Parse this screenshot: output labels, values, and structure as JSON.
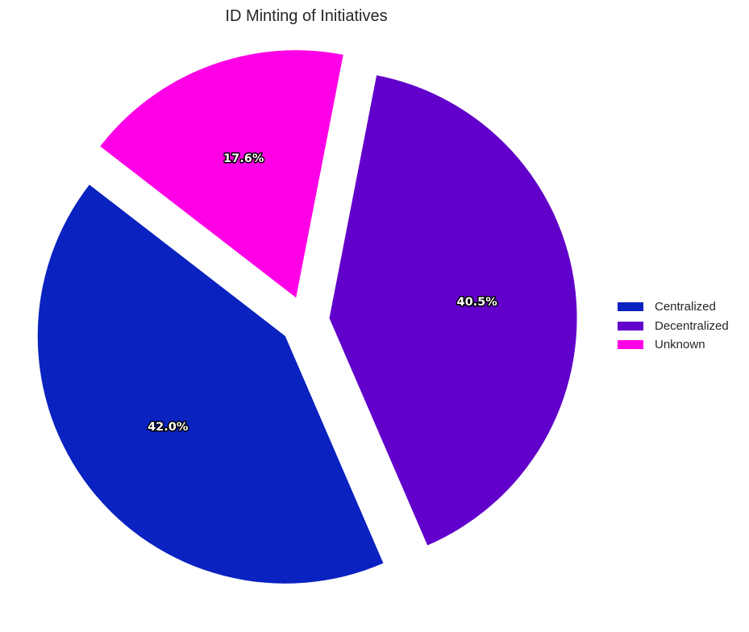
{
  "chart_data": {
    "type": "pie",
    "title": "ID Minting of Initiatives",
    "slices": [
      {
        "label": "Centralized",
        "value": 42.0,
        "display": "42.0%",
        "color": "#0a22c0"
      },
      {
        "label": "Decentralized",
        "value": 40.5,
        "display": "40.5%",
        "color": "#6100cb"
      },
      {
        "label": "Unknown",
        "value": 17.6,
        "display": "17.6%",
        "color": "#ff00e6"
      }
    ],
    "exploded": true,
    "legend_position": "right"
  }
}
